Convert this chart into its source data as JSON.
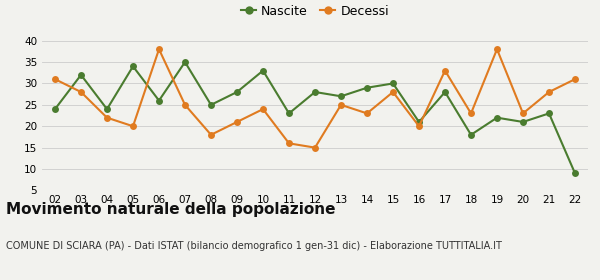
{
  "years": [
    "02",
    "03",
    "04",
    "05",
    "06",
    "07",
    "08",
    "09",
    "10",
    "11",
    "12",
    "13",
    "14",
    "15",
    "16",
    "17",
    "18",
    "19",
    "20",
    "21",
    "22"
  ],
  "nascite": [
    24,
    32,
    24,
    34,
    26,
    35,
    25,
    28,
    33,
    23,
    28,
    27,
    29,
    30,
    21,
    28,
    18,
    22,
    21,
    23,
    9
  ],
  "decessi": [
    31,
    28,
    22,
    20,
    38,
    25,
    18,
    21,
    24,
    16,
    15,
    25,
    23,
    28,
    20,
    33,
    23,
    38,
    23,
    28,
    31
  ],
  "nascite_color": "#4a7c2f",
  "decessi_color": "#e07b20",
  "bg_color": "#f2f2ee",
  "grid_color": "#cccccc",
  "title": "Movimento naturale della popolazione",
  "subtitle": "COMUNE DI SCIARA (PA) - Dati ISTAT (bilancio demografico 1 gen-31 dic) - Elaborazione TUTTITALIA.IT",
  "ylim": [
    5,
    41
  ],
  "yticks": [
    5,
    10,
    15,
    20,
    25,
    30,
    35,
    40
  ],
  "legend_nascite": "Nascite",
  "legend_decessi": "Decessi",
  "marker_size": 5,
  "line_width": 1.5,
  "title_fontsize": 11,
  "subtitle_fontsize": 7,
  "tick_fontsize": 7.5
}
